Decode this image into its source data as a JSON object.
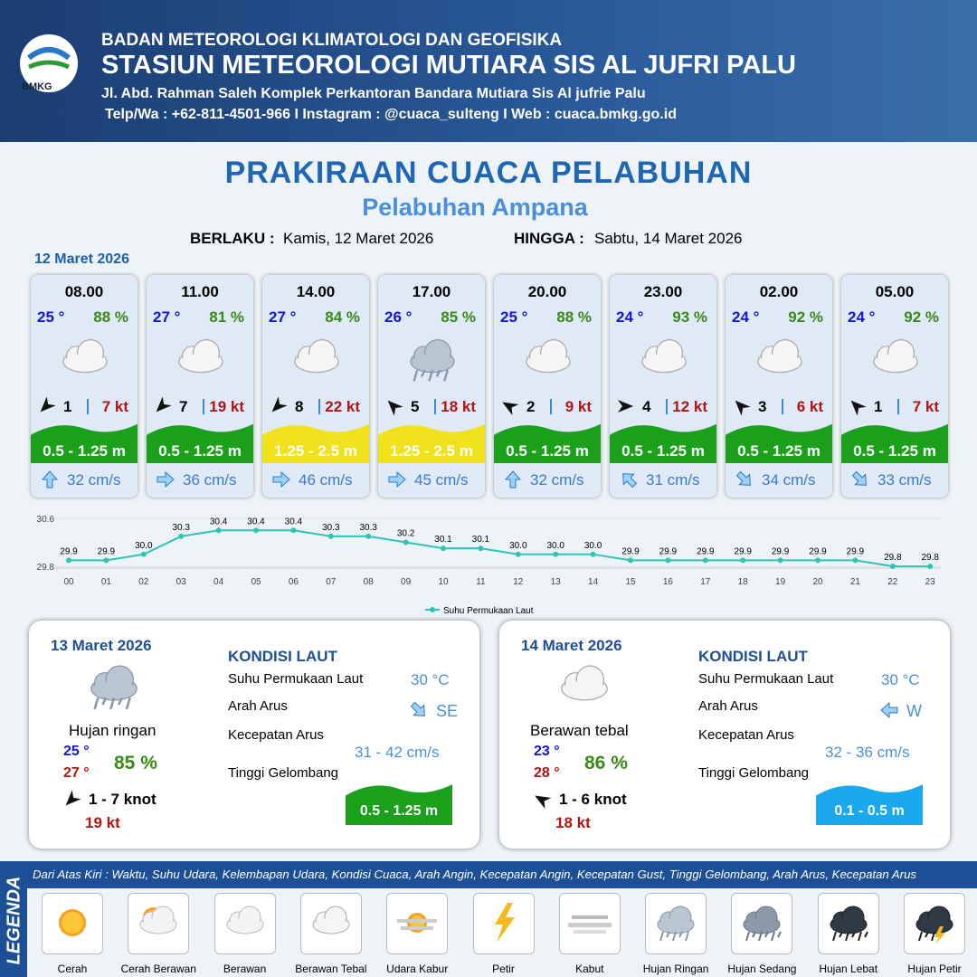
{
  "header": {
    "logo": "BMKG",
    "agency": "BADAN METEOROLOGI KLIMATOLOGI DAN GEOFISIKA",
    "station": "STASIUN METEOROLOGI MUTIARA SIS AL JUFRI PALU",
    "address": "Jl. Abd. Rahman Saleh Komplek Perkantoran Bandara Mutiara Sis Al jufrie Palu",
    "contact": "Telp/Wa : +62-811-4501-966 I Instagram : @cuaca_sulteng I Web : cuaca.bmkg.go.id"
  },
  "title": "PRAKIRAAN CUACA PELABUHAN",
  "subtitle": "Pelabuhan Ampana",
  "validity": {
    "from_label": "BERLAKU :",
    "from": "Kamis, 12 Maret 2026",
    "to_label": "HINGGA :",
    "to": "Sabtu, 14 Maret 2026"
  },
  "day1": {
    "date": "12 Maret 2026",
    "cards": [
      {
        "time": "08.00",
        "temp": "25 °",
        "humidity": "88 %",
        "wind": "1",
        "gust": "7 kt",
        "wave": "0.5 - 1.25 m",
        "wave_color": "#1aa01a",
        "current": "32 cm/s"
      },
      {
        "time": "11.00",
        "temp": "27 °",
        "humidity": "81 %",
        "wind": "7",
        "gust": "19 kt",
        "wave": "0.5 - 1.25 m",
        "wave_color": "#1aa01a",
        "current": "36 cm/s"
      },
      {
        "time": "14.00",
        "temp": "27 °",
        "humidity": "84 %",
        "wind": "8",
        "gust": "22 kt",
        "wave": "1.25 - 2.5 m",
        "wave_color": "#f0e21c",
        "current": "46 cm/s"
      },
      {
        "time": "17.00",
        "temp": "26 °",
        "humidity": "85 %",
        "wind": "5",
        "gust": "18 kt",
        "wave": "1.25 - 2.5 m",
        "wave_color": "#f0e21c",
        "current": "45 cm/s"
      },
      {
        "time": "20.00",
        "temp": "25 °",
        "humidity": "88 %",
        "wind": "2",
        "gust": "9 kt",
        "wave": "0.5 - 1.25 m",
        "wave_color": "#1aa01a",
        "current": "32 cm/s"
      },
      {
        "time": "23.00",
        "temp": "24 °",
        "humidity": "93 %",
        "wind": "4",
        "gust": "12 kt",
        "wave": "0.5 - 1.25 m",
        "wave_color": "#1aa01a",
        "current": "31 cm/s"
      },
      {
        "time": "02.00",
        "temp": "24 °",
        "humidity": "92 %",
        "wind": "3",
        "gust": "6 kt",
        "wave": "0.5 - 1.25 m",
        "wave_color": "#1aa01a",
        "current": "34 cm/s"
      },
      {
        "time": "05.00",
        "temp": "24 °",
        "humidity": "92 %",
        "wind": "1",
        "gust": "7 kt",
        "wave": "0.5 - 1.25 m",
        "wave_color": "#1aa01a",
        "current": "33 cm/s"
      }
    ]
  },
  "chart_data": {
    "type": "line",
    "categories": [
      "00",
      "01",
      "02",
      "03",
      "04",
      "05",
      "06",
      "07",
      "08",
      "09",
      "10",
      "11",
      "12",
      "13",
      "14",
      "15",
      "16",
      "17",
      "18",
      "19",
      "20",
      "21",
      "22",
      "23"
    ],
    "series": [
      {
        "name": "Suhu Permukaan Laut",
        "color": "#2ec4b6",
        "values": [
          29.9,
          29.9,
          30.0,
          30.3,
          30.4,
          30.4,
          30.4,
          30.3,
          30.3,
          30.2,
          30.1,
          30.1,
          30.0,
          30.0,
          30.0,
          29.9,
          29.9,
          29.9,
          29.9,
          29.9,
          29.9,
          29.9,
          29.8,
          29.8
        ],
        "value_labels": [
          "29.9",
          "29.9",
          "30.0",
          "30.3",
          "30.4",
          "30.4",
          "30.4",
          "30.3",
          "30.3",
          "30.2",
          "30.1",
          "30.1",
          "30.0",
          "30.0",
          "30.0",
          "29.9",
          "29.9",
          "29.9",
          "29.9",
          "29.9",
          "29.9",
          "29.9",
          "29.8",
          "29.8"
        ]
      }
    ],
    "ylim": [
      29.8,
      30.6
    ],
    "yticks": [
      29.8,
      30.6
    ]
  },
  "days": [
    {
      "date": "13 Maret 2026",
      "condition": "Hujan ringan",
      "temp_min": "25 °",
      "temp_max": "27 °",
      "humidity": "85 %",
      "wind": "1 - 7 knot",
      "gust": "19 kt",
      "sea_title": "KONDISI LAUT",
      "sst_label": "Suhu Permukaan Laut",
      "sst": "30 °C",
      "dir_label": "Arah Arus",
      "dir": "SE",
      "speed_label": "Kecepatan Arus",
      "speed": "31 - 42 cm/s",
      "wave_label": "Tinggi Gelombang",
      "wave": "0.5 - 1.25 m",
      "wave_color": "#1aa01a"
    },
    {
      "date": "14 Maret 2026",
      "condition": "Berawan tebal",
      "temp_min": "23 °",
      "temp_max": "28 °",
      "humidity": "86 %",
      "wind": "1 - 6 knot",
      "gust": "18 kt",
      "sea_title": "KONDISI LAUT",
      "sst_label": "Suhu Permukaan Laut",
      "sst": "30 °C",
      "dir_label": "Arah Arus",
      "dir": "W",
      "speed_label": "Kecepatan Arus",
      "speed": "32 - 36 cm/s",
      "wave_label": "Tinggi Gelombang",
      "wave": "0.1 - 0.5 m",
      "wave_color": "#1aa8ee"
    }
  ],
  "legend": {
    "title": "LEGENDA",
    "description": "Dari Atas Kiri : Waktu, Suhu Udara, Kelembapan Udara, Kondisi Cuaca, Arah Angin, Kecepatan Angin, Kecepatan Gust, Tinggi Gelombang, Arah Arus, Kecepatan Arus",
    "items": [
      "Cerah",
      "Cerah Berawan",
      "Berawan",
      "Berawan Tebal",
      "Udara Kabur",
      "Petir",
      "Kabut",
      "Hujan Ringan",
      "Hujan Sedang",
      "Hujan Lebat",
      "Hujan Petir"
    ]
  }
}
